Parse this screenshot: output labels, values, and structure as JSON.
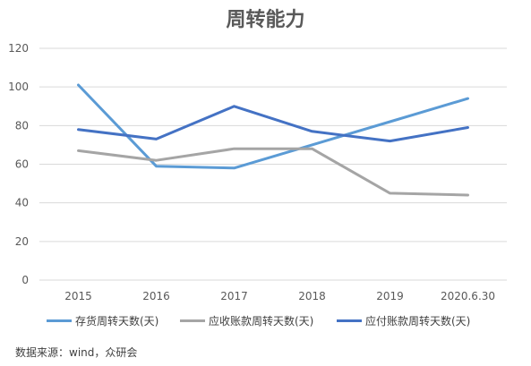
{
  "chart_data": {
    "type": "line",
    "title": "周转能力",
    "categories": [
      "2015",
      "2016",
      "2017",
      "2018",
      "2019",
      "2020.6.30"
    ],
    "ylim": [
      0,
      120
    ],
    "yticks": [
      0,
      20,
      40,
      60,
      80,
      100,
      120
    ],
    "grid": true,
    "legend_position": "bottom",
    "series": [
      {
        "name": "存货周转天数(天)",
        "color": "#5b9bd5",
        "values": [
          101,
          59,
          58,
          70,
          82,
          94
        ]
      },
      {
        "name": "应收账款周转天数(天)",
        "color": "#a5a5a5",
        "values": [
          67,
          62,
          68,
          68,
          45,
          44
        ]
      },
      {
        "name": "应付账款周转天数(天)",
        "color": "#4472c4",
        "values": [
          78,
          73,
          90,
          77,
          72,
          79
        ]
      }
    ]
  },
  "source": "数据来源：wind，众研会"
}
